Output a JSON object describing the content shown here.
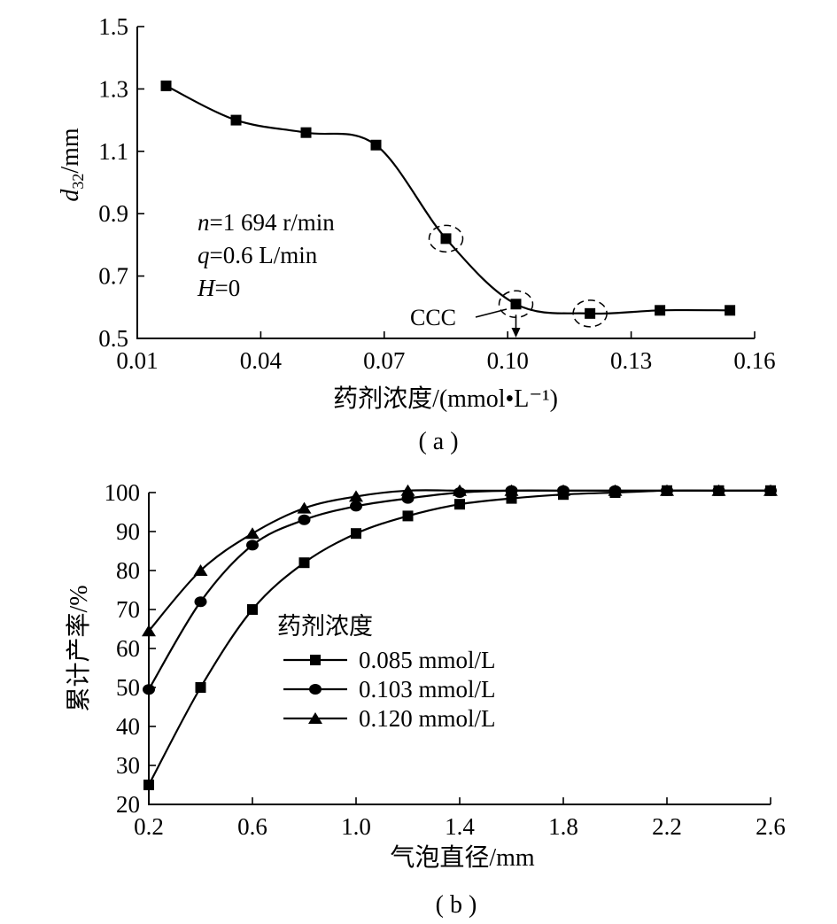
{
  "chart_data": [
    {
      "type": "line",
      "panel_label": "( a )",
      "xlabel": "药剂浓度/(mmol•L⁻¹)",
      "ylabel_main": "d",
      "ylabel_sub": "32",
      "ylabel_unit": "/mm",
      "xlim": [
        0.01,
        0.16
      ],
      "ylim": [
        0.5,
        1.5
      ],
      "xticks": [
        "0.01",
        "0.04",
        "0.07",
        "0.10",
        "0.13",
        "0.16"
      ],
      "yticks": [
        "0.5",
        "0.7",
        "0.9",
        "1.1",
        "1.3",
        "1.5"
      ],
      "series": [
        {
          "marker": "square",
          "x": [
            0.017,
            0.034,
            0.051,
            0.068,
            0.085,
            0.102,
            0.12,
            0.137,
            0.154
          ],
          "y": [
            1.31,
            1.2,
            1.16,
            1.12,
            0.82,
            0.61,
            0.58,
            0.59,
            0.59
          ]
        }
      ],
      "annotations": {
        "params": [
          {
            "var": "n",
            "rest": "=1 694 r/min"
          },
          {
            "var": "q",
            "rest": "=0.6 L/min"
          },
          {
            "var": "H",
            "rest": "=0"
          }
        ],
        "ccc_label": "CCC",
        "ccc_x": 0.102,
        "circled_points": [
          0.085,
          0.102,
          0.12
        ]
      }
    },
    {
      "type": "line",
      "panel_label": "( b )",
      "xlabel": "气泡直径/mm",
      "ylabel": "累计产率/%",
      "xlim": [
        0.2,
        2.6
      ],
      "ylim": [
        20,
        100
      ],
      "xticks": [
        "0.2",
        "0.6",
        "1.0",
        "1.4",
        "1.8",
        "2.2",
        "2.6"
      ],
      "yticks": [
        "20",
        "30",
        "40",
        "50",
        "60",
        "70",
        "80",
        "90",
        "100"
      ],
      "legend_title": "药剂浓度",
      "legend_position": "center-left",
      "series": [
        {
          "name": "0.085 mmol/L",
          "marker": "square",
          "x": [
            0.2,
            0.4,
            0.6,
            0.8,
            1.0,
            1.2,
            1.4,
            1.6,
            1.8,
            2.0,
            2.2,
            2.4,
            2.6
          ],
          "y": [
            25,
            50,
            70,
            82,
            89.5,
            94,
            97,
            98.5,
            99.5,
            100,
            100.5,
            100.5,
            100.5
          ]
        },
        {
          "name": "0.103 mmol/L",
          "marker": "circle",
          "x": [
            0.2,
            0.4,
            0.6,
            0.8,
            1.0,
            1.2,
            1.4,
            1.6,
            1.8,
            2.0,
            2.2,
            2.4,
            2.6
          ],
          "y": [
            49.5,
            72,
            86.5,
            93,
            96.5,
            98.5,
            100,
            100.5,
            100.5,
            100.5,
            100.5,
            100.5,
            100.5
          ]
        },
        {
          "name": "0.120 mmol/L",
          "marker": "triangle",
          "x": [
            0.2,
            0.4,
            0.6,
            0.8,
            1.0,
            1.2,
            1.4,
            1.6,
            1.8,
            2.0,
            2.2,
            2.4,
            2.6
          ],
          "y": [
            64.5,
            80,
            89.5,
            96,
            99,
            100.5,
            100.5,
            100.5,
            100.5,
            100.5,
            100.5,
            100.5,
            100.5
          ]
        }
      ]
    }
  ]
}
